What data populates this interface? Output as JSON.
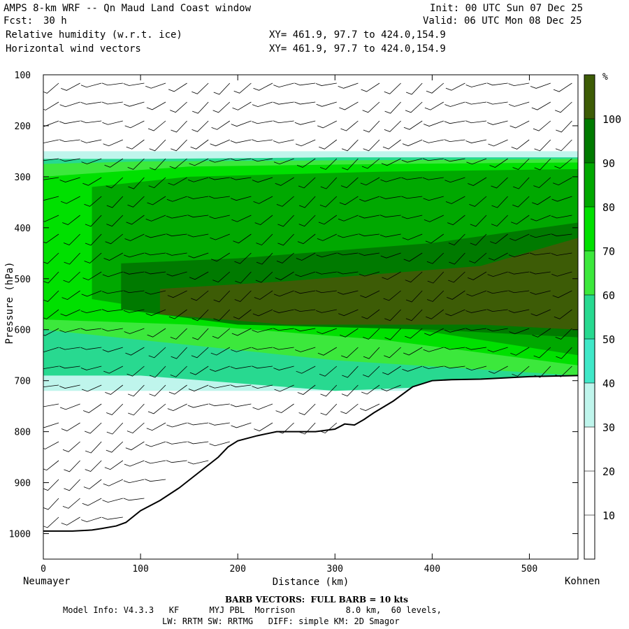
{
  "header": {
    "title": "AMPS 8-km WRF -- Qn Maud Land Coast window",
    "fcst_label": "Fcst:",
    "fcst_value": "30 h",
    "init": "Init: 00 UTC Sun 07 Dec 25",
    "valid": "Valid: 06 UTC Mon 08 Dec 25",
    "field1": "Relative humidity (w.r.t. ice)",
    "field2": "Horizontal wind vectors",
    "xy1": "XY= 461.9, 97.7 to 424.0,154.9",
    "xy2": "XY= 461.9, 97.7 to 424.0,154.9"
  },
  "axes": {
    "left_label": "Neumayer",
    "right_label": "Kohnen"
  },
  "footer": {
    "barb_note": "BARB VECTORS:  FULL BARB = 10 kts",
    "model_info": "Model Info: V4.3.3   KF      MYJ PBL  Morrison          8.0 km,  60 levels,",
    "model_info2": "LW: RRTM SW: RRTMG   DIFF: simple KM: 2D Smagor"
  },
  "colors": {
    "rh_100": "#3d5c06",
    "rh_90": "#007a00",
    "rh_80": "#00a800",
    "rh_70": "#00e000",
    "rh_60": "#3ce83c",
    "rh_50": "#28d990",
    "rh_40": "#40e8c8",
    "rh_30": "#bff5ec",
    "rh_low": "#ffffff"
  },
  "chart_data": {
    "type": "heatmap",
    "title": "Relative humidity (w.r.t. ice)",
    "xlabel": "Distance (km)",
    "ylabel": "Pressure (hPa)",
    "xlim": [
      0,
      550
    ],
    "ylim": [
      1050,
      100
    ],
    "x_ticks": [
      0,
      100,
      200,
      300,
      400,
      500
    ],
    "y_ticks": [
      100,
      200,
      300,
      400,
      500,
      600,
      700,
      800,
      900,
      1000
    ],
    "colorbar": {
      "unit": "%",
      "levels": [
        10,
        20,
        30,
        40,
        50,
        60,
        70,
        80,
        90,
        100
      ]
    },
    "terrain_surface": {
      "distance_km": [
        0,
        10,
        30,
        50,
        60,
        75,
        85,
        100,
        120,
        140,
        160,
        180,
        190,
        200,
        220,
        240,
        260,
        280,
        300,
        310,
        320,
        330,
        340,
        360,
        380,
        400,
        420,
        450,
        500,
        550
      ],
      "pressure_hpa": [
        995,
        995,
        995,
        993,
        990,
        985,
        978,
        955,
        935,
        910,
        880,
        850,
        830,
        818,
        808,
        800,
        800,
        800,
        795,
        785,
        787,
        776,
        763,
        740,
        712,
        700,
        698,
        697,
        692,
        690
      ]
    },
    "rh_bands": [
      {
        "level": 30,
        "distance_km": [
          0,
          550
        ],
        "top_hpa": [
          250,
          250
        ],
        "bottom_hpa": [
          720,
          720
        ]
      },
      {
        "level": 50,
        "distance_km": [
          0,
          100,
          300,
          550
        ],
        "top_hpa": [
          265,
          265,
          262,
          262
        ],
        "bottom_hpa": [
          690,
          690,
          720,
          700
        ]
      },
      {
        "level": 60,
        "distance_km": [
          0,
          100,
          300,
          550
        ],
        "top_hpa": [
          275,
          270,
          268,
          265
        ],
        "bottom_hpa": [
          600,
          620,
          660,
          690
        ]
      },
      {
        "level": 70,
        "distance_km": [
          0,
          150,
          350,
          550
        ],
        "top_hpa": [
          300,
          280,
          275,
          272
        ],
        "bottom_hpa": [
          580,
          590,
          620,
          670
        ]
      },
      {
        "level": 80,
        "distance_km": [
          50,
          150,
          350,
          550
        ],
        "top_hpa": [
          320,
          300,
          290,
          285
        ],
        "bottom_hpa": [
          540,
          570,
          590,
          650
        ]
      },
      {
        "level": 90,
        "distance_km": [
          80,
          200,
          400,
          550
        ],
        "top_hpa": [
          470,
          460,
          430,
          390
        ],
        "bottom_hpa": [
          560,
          590,
          600,
          615
        ]
      },
      {
        "level": 100,
        "distance_km": [
          120,
          250,
          450,
          550
        ],
        "top_hpa": [
          520,
          505,
          475,
          420
        ],
        "bottom_hpa": [
          570,
          590,
          590,
          600
        ]
      }
    ]
  }
}
